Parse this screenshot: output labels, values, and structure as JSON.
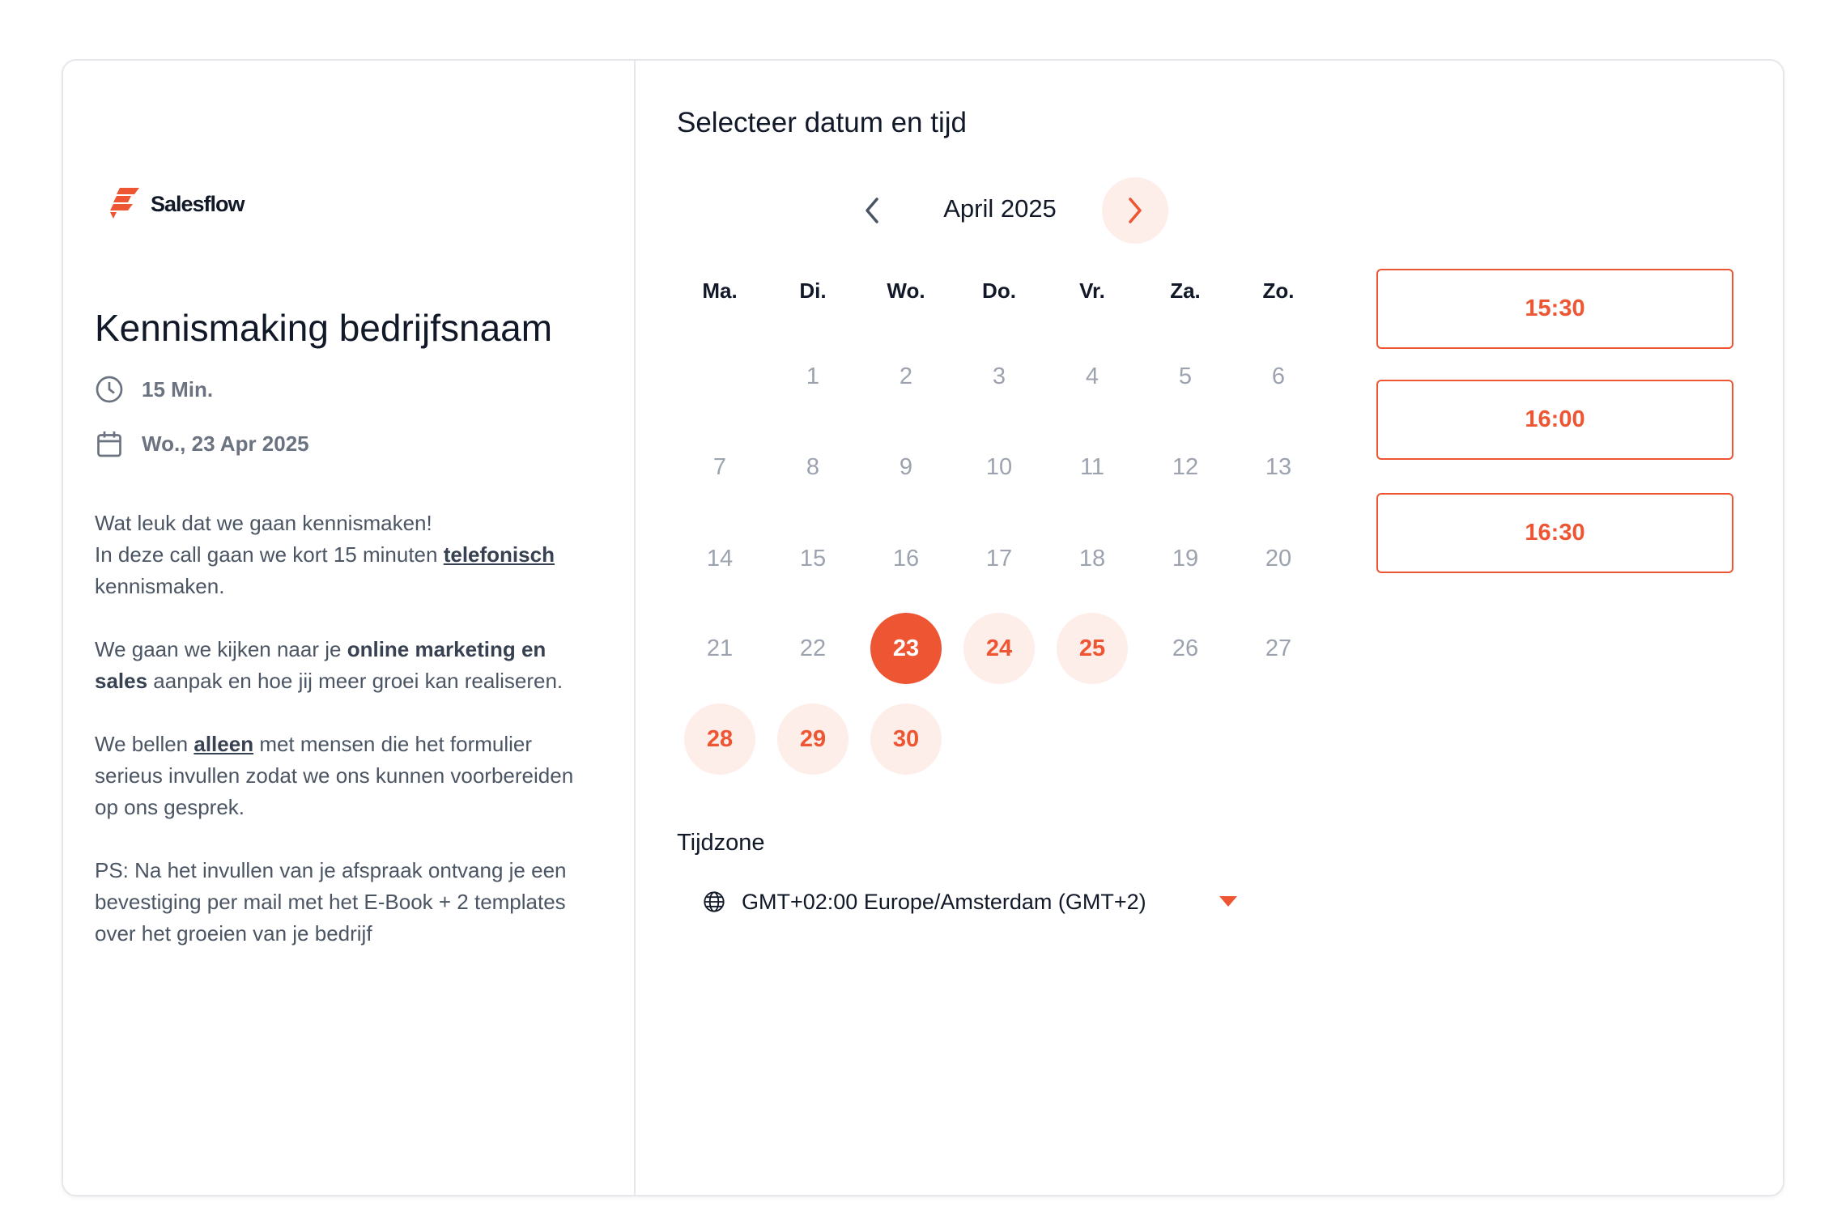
{
  "brand": {
    "name": "Salesflow",
    "accent": "#EE5533",
    "accent_light": "#FDEEEA"
  },
  "event": {
    "title": "Kennismaking bedrijfsnaam",
    "duration": "15 Min.",
    "date": "Wo., 23 Apr 2025"
  },
  "description": {
    "p1_l1": "Wat leuk dat we gaan kennismaken!",
    "p1_l2a": "In deze call gaan we kort 15 minuten ",
    "p1_l2_link": "telefonisch",
    "p1_l2b": " kennismaken.",
    "p2a": "We gaan we kijken naar je ",
    "p2_bold": "online marketing en sales",
    "p2b": " aanpak en hoe jij meer groei kan realiseren.",
    "p3a": "We bellen ",
    "p3_link": "alleen",
    "p3b": " met mensen die het formulier serieus invullen zodat we ons kunnen voorbereiden op ons gesprek.",
    "p4": "PS: Na het invullen van je afspraak ontvang je een bevestiging per mail met het E-Book + 2 templates over het groeien van je bedrijf"
  },
  "picker": {
    "heading": "Selecteer datum en tijd",
    "month": "April 2025",
    "weekdays": [
      "Ma.",
      "Di.",
      "Wo.",
      "Do.",
      "Vr.",
      "Za.",
      "Zo."
    ],
    "first_weekday_offset": 1,
    "days_in_month": 30,
    "available_days": [
      24,
      25,
      28,
      29,
      30
    ],
    "selected_day": 23
  },
  "slots": [
    "15:30",
    "16:00",
    "16:30"
  ],
  "timezone": {
    "label": "Tijdzone",
    "value": "GMT+02:00 Europe/Amsterdam (GMT+2)"
  }
}
